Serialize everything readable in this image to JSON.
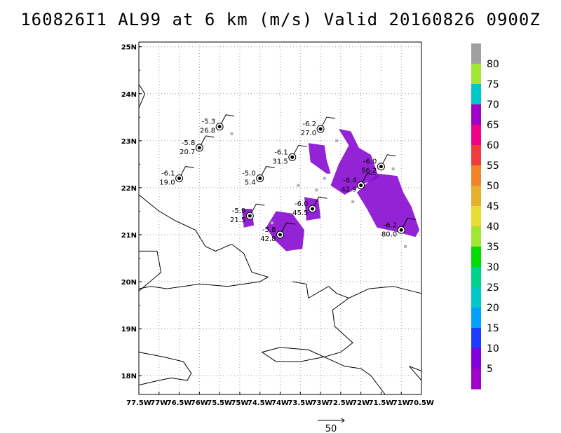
{
  "title": "160826I1 AL99 at 6 km (m/s) Valid 20160826 0900Z",
  "map": {
    "lon_min": -77.5,
    "lon_max": -70.5,
    "lat_min": 17.6,
    "lat_max": 25.1,
    "x_ticks": [
      "77.5W",
      "77W",
      "76.5W",
      "76W",
      "75.5W",
      "75W",
      "74.5W",
      "74W",
      "73.5W",
      "73W",
      "72.5W",
      "72W",
      "71.5W",
      "71W",
      "70.5W"
    ],
    "y_ticks": [
      "25N",
      "24N",
      "23N",
      "22N",
      "21N",
      "20N",
      "19N",
      "18N"
    ],
    "grid": true,
    "land_color": "#000000"
  },
  "reference_vector": {
    "label": "50"
  },
  "colorbar": {
    "labels": [
      "80",
      "75",
      "70",
      "65",
      "60",
      "55",
      "50",
      "45",
      "40",
      "35",
      "30",
      "25",
      "20",
      "15",
      "10",
      "5"
    ],
    "colors": [
      "#a0a0a0",
      "#a0e632",
      "#00c8c8",
      "#a000c8",
      "#f00082",
      "#f03c3c",
      "#f08228",
      "#e6af2d",
      "#e6dc32",
      "#a0e632",
      "#00dc00",
      "#00d28c",
      "#00c8c8",
      "#00a0ff",
      "#1e3cff",
      "#8200dc",
      "#a000c8"
    ]
  },
  "observations": [
    {
      "lon": -75.5,
      "lat": 23.3,
      "top": "-5.3",
      "bottom": "26.8"
    },
    {
      "lon": -76.0,
      "lat": 22.85,
      "top": "-5.8",
      "bottom": "20.7"
    },
    {
      "lon": -76.5,
      "lat": 22.2,
      "top": "-6.1",
      "bottom": "19.0"
    },
    {
      "lon": -74.5,
      "lat": 22.2,
      "top": "-5.0",
      "bottom": "5.4"
    },
    {
      "lon": -73.7,
      "lat": 22.65,
      "top": "-6.1",
      "bottom": "31.5"
    },
    {
      "lon": -73.0,
      "lat": 23.25,
      "top": "-6.2",
      "bottom": "27.0"
    },
    {
      "lon": -71.5,
      "lat": 22.45,
      "top": "-6.0",
      "bottom": "56.2"
    },
    {
      "lon": -72.0,
      "lat": 22.05,
      "top": "-6.4",
      "bottom": "42.9"
    },
    {
      "lon": -73.2,
      "lat": 21.55,
      "top": "-6.0",
      "bottom": "45.5"
    },
    {
      "lon": -74.75,
      "lat": 21.4,
      "top": "-5.9",
      "bottom": "21.5"
    },
    {
      "lon": -74.0,
      "lat": 21.0,
      "top": "-5.8",
      "bottom": "42.8"
    },
    {
      "lon": -71.0,
      "lat": 21.1,
      "top": "-6.2",
      "bottom": "80.0"
    }
  ]
}
